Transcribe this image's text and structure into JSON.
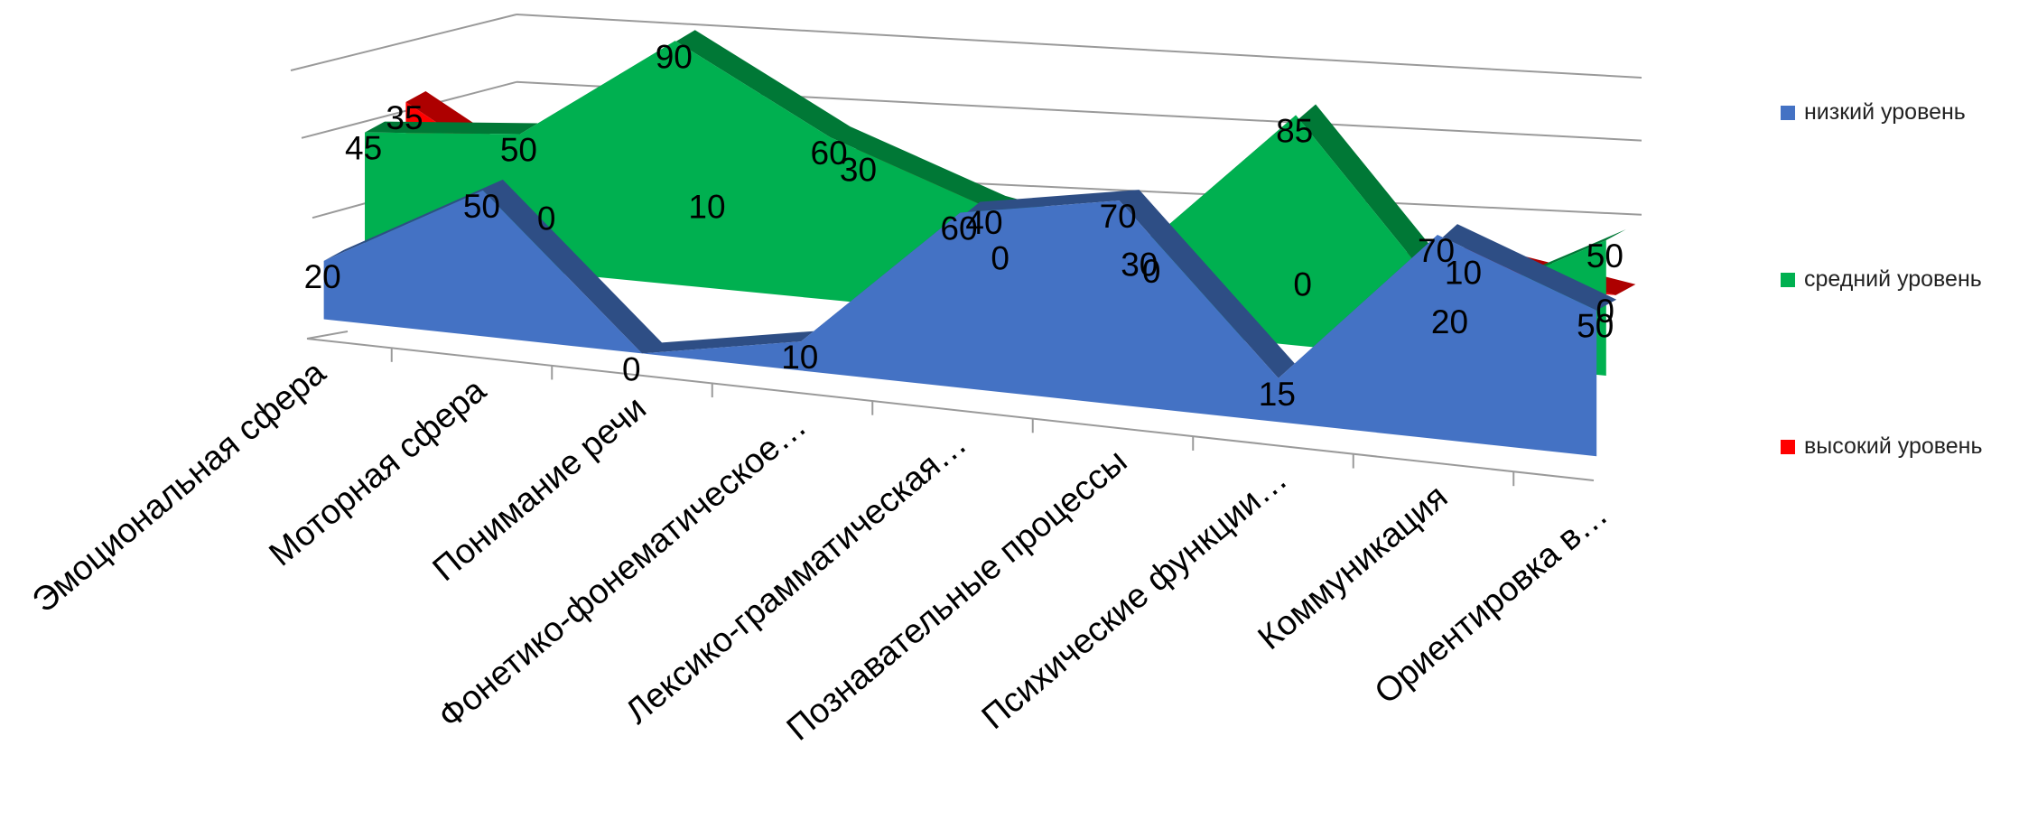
{
  "chart_data": {
    "type": "area",
    "categories": [
      "Эмоциональная сфера",
      "Моторная сфера",
      "Понимание речи",
      "Фонетико-фонематическое…",
      "Лексико-грамматическая…",
      "Познавательные процессы",
      "Психические функции…",
      "Коммуникация",
      "Ориентировка в…"
    ],
    "series": [
      {
        "name": "низкий уровень",
        "color": "#4472C4",
        "values": [
          20,
          50,
          0,
          10,
          60,
          70,
          15,
          70,
          50
        ]
      },
      {
        "name": "средний уровень",
        "color": "#00B050",
        "values": [
          45,
          50,
          90,
          60,
          40,
          30,
          85,
          20,
          50
        ]
      },
      {
        "name": "высокий уровень",
        "color": "#FF0000",
        "values": [
          35,
          0,
          10,
          30,
          0,
          0,
          0,
          10,
          0
        ]
      }
    ],
    "title": "",
    "xlabel": "",
    "ylabel": "",
    "ylim": [
      0,
      100
    ],
    "legend_position": "right",
    "grid": true,
    "view": "3d"
  }
}
